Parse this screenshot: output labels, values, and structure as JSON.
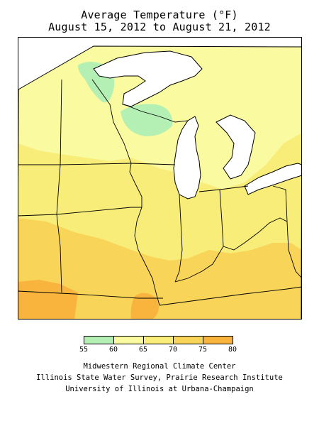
{
  "title": {
    "line1": "Average Temperature (°F)",
    "line2": "August 15, 2012 to August 21, 2012"
  },
  "legend": {
    "bins": [
      {
        "from": 55,
        "to": 60,
        "color": "#b4f0b4"
      },
      {
        "from": 60,
        "to": 65,
        "color": "#fafaa0"
      },
      {
        "from": 65,
        "to": 70,
        "color": "#f8ed78"
      },
      {
        "from": 70,
        "to": 75,
        "color": "#f8d458"
      },
      {
        "from": 75,
        "to": 80,
        "color": "#f8b43c"
      }
    ],
    "tick_labels": [
      "55",
      "60",
      "65",
      "70",
      "75",
      "80"
    ]
  },
  "credits": {
    "line1": "Midwestern Regional Climate Center",
    "line2": "Illinois State Water Survey, Prairie Research Institute",
    "line3": "University of Illinois at Urbana-Champaign"
  }
}
